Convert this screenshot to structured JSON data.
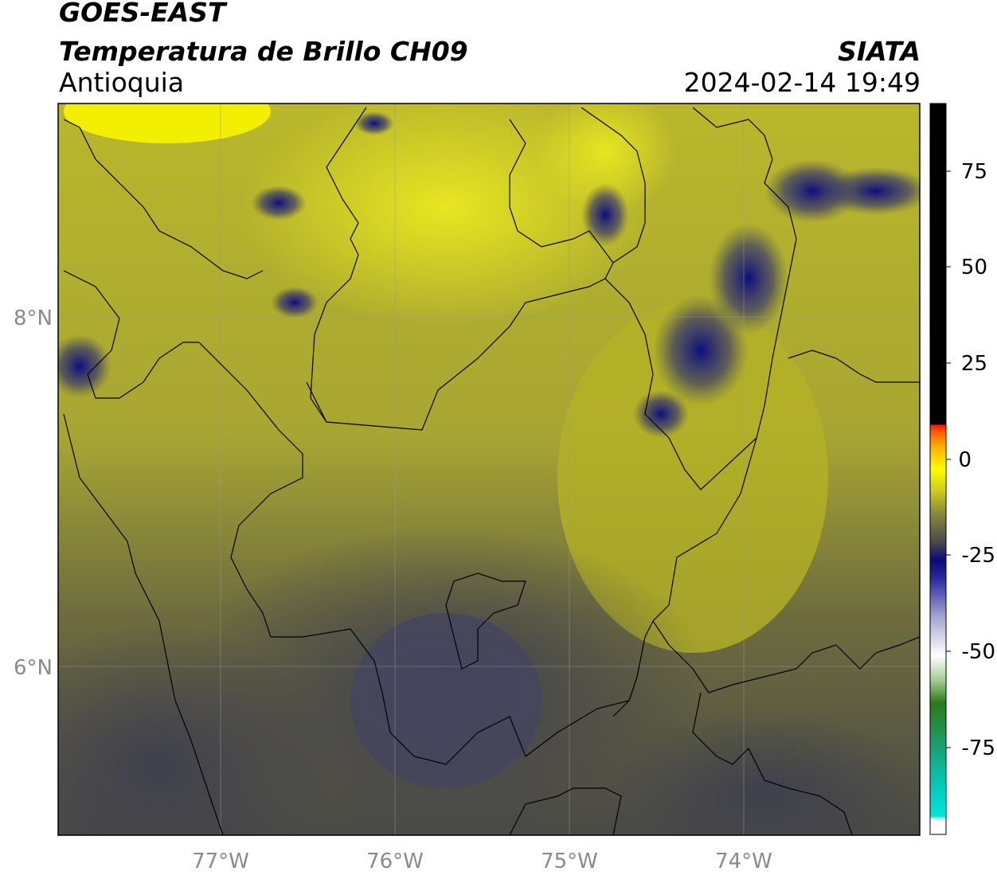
{
  "header": {
    "satellite": "GOES-EAST",
    "product": "Temperatura de Brillo CH09",
    "region": "Antioquia",
    "agency": "SIATA",
    "datetime": "2024-02-14 19:49"
  },
  "map": {
    "lat_labels": [
      "8°N",
      "6°N"
    ],
    "lon_labels": [
      "77°W",
      "76°W",
      "75°W",
      "74°W"
    ],
    "lat_range": [
      5.0,
      9.2
    ],
    "lon_range": [
      -77.95,
      -73.0
    ],
    "gridlines": true
  },
  "colorbar": {
    "ticks": [
      "75",
      "50",
      "25",
      "0",
      "-25",
      "-50",
      "-75"
    ],
    "range": [
      -95,
      92
    ],
    "colors": {
      "black": "#000000",
      "red": "#ff1a00",
      "orange": "#ff9900",
      "yellow": "#ffff00",
      "olive": "#b3b324",
      "grey": "#4a4a4a",
      "navy": "#0a0a7a",
      "white": "#ffffff",
      "green": "#2a7a1a",
      "cyan": "#00e5e5"
    }
  }
}
